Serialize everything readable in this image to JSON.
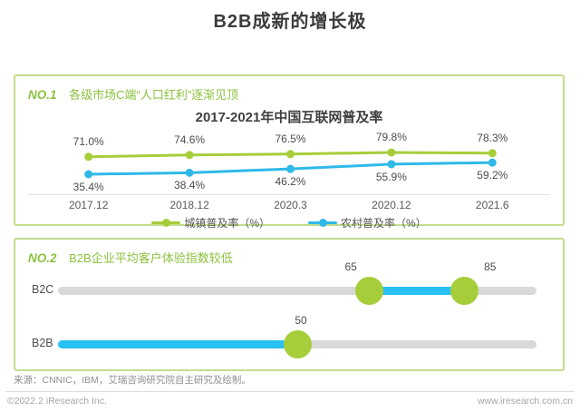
{
  "title": "B2B成新的增长极",
  "colors": {
    "green": "#a6ce3a",
    "blue": "#2fb9e8",
    "bar_blue": "#29c1f2",
    "box_border": "#c3dd8d",
    "heading_green": "#8bc13d",
    "track_gray": "#d9d9d9"
  },
  "sections": [
    {
      "badge": "NO.1",
      "heading": "各级市场C端“人口红利”逐渐见顶"
    },
    {
      "badge": "NO.2",
      "heading": "B2B企业平均客户体验指数较低"
    }
  ],
  "chart_data": [
    {
      "type": "line",
      "title": "2017-2021年中国互联网普及率",
      "categories": [
        "2017.12",
        "2018.12",
        "2020.3",
        "2020.12",
        "2021.6"
      ],
      "series": [
        {
          "name": "城镇普及率（%）",
          "color_key": "green",
          "values": [
            71.0,
            74.6,
            76.5,
            79.8,
            78.3
          ],
          "labels": [
            "71.0%",
            "74.6%",
            "76.5%",
            "79.8%",
            "78.3%"
          ],
          "label_side": "above"
        },
        {
          "name": "农村普及率（%）",
          "color_key": "blue",
          "values": [
            35.4,
            38.4,
            46.2,
            55.9,
            59.2
          ],
          "labels": [
            "35.4%",
            "38.4%",
            "46.2%",
            "55.9%",
            "59.2%"
          ],
          "label_side": "below"
        }
      ],
      "legend_position": "bottom",
      "grid": false,
      "ylim": [
        30,
        85
      ]
    },
    {
      "type": "dumbbell",
      "xlim": [
        0,
        100
      ],
      "rows": [
        {
          "category": "B2C",
          "bar_start": 65,
          "bar_end": 85,
          "dots": [
            {
              "value": 65,
              "label": "65",
              "label_align": "left"
            },
            {
              "value": 85,
              "label": "85",
              "label_align": "right"
            }
          ]
        },
        {
          "category": "B2B",
          "bar_start": 0,
          "bar_end": 50,
          "dots": [
            {
              "value": 50,
              "label": "50",
              "label_align": "center"
            }
          ]
        }
      ]
    }
  ],
  "source_note": "来源：CNNIC，IBM，艾瑞咨询研究院自主研究及绘制。",
  "footer": {
    "left": "©2022.2 iResearch Inc.",
    "right": "www.iresearch.com.cn"
  }
}
